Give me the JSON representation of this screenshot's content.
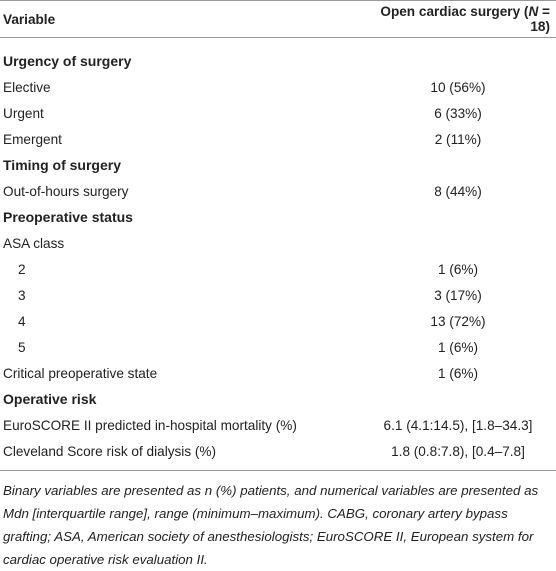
{
  "table": {
    "header": {
      "variable": "Variable",
      "group": [
        "Open cardiac surgery (",
        "N",
        " = 18)"
      ]
    },
    "sections": [
      {
        "title": "Urgency of surgery",
        "rows": [
          [
            "Elective",
            "10 (56%)"
          ],
          [
            "Urgent",
            "6 (33%)"
          ],
          [
            "Emergent",
            "2 (11%)"
          ]
        ]
      },
      {
        "title": "Timing of surgery",
        "rows": [
          [
            "Out-of-hours surgery",
            "8 (44%)"
          ]
        ]
      },
      {
        "title": "Preoperative status",
        "rows": [
          {
            "label": "ASA class",
            "subrows": [
              [
                "2",
                "1 (6%)"
              ],
              [
                "3",
                "3 (17%)"
              ],
              [
                "4",
                "13 (72%)"
              ],
              [
                "5",
                "1 (6%)"
              ]
            ]
          },
          [
            "Critical preoperative state",
            "1 (6%)"
          ]
        ]
      },
      {
        "title": "Operative risk",
        "rows": [
          [
            "EuroSCORE II predicted in-hospital mortality (%)",
            "6.1 (4.1:14.5), [1.8–34.3]"
          ],
          [
            "Cleveland Score risk of dialysis (%)",
            "1.8 (0.8:7.8), [0.4–7.8]"
          ]
        ]
      }
    ],
    "footnote": "Binary variables are presented as n (%) patients, and numerical variables are presented as Mdn [interquartile range], range (minimum–maximum). CABG, coronary artery bypass grafting; ASA, American society of anesthesiologists; EuroSCORE II, European system for cardiac operative risk evaluation II."
  }
}
